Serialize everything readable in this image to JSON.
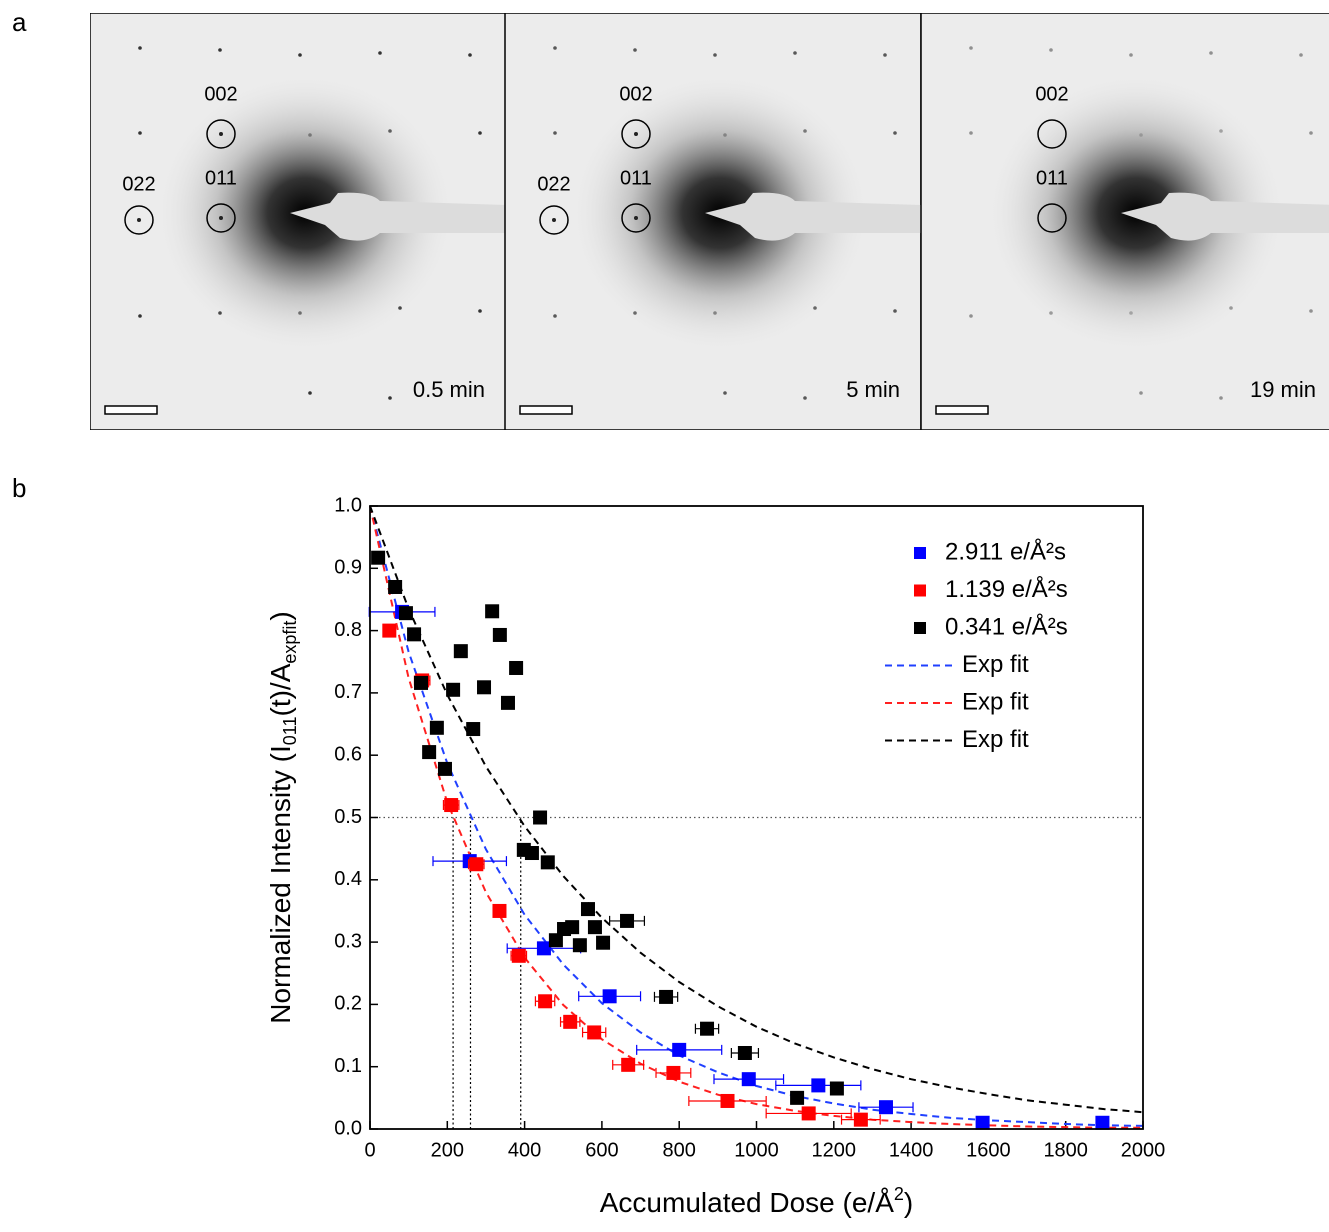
{
  "figure": {
    "panel_a_label": "a",
    "panel_b_label": "b",
    "frames": [
      {
        "time": "0.5 min",
        "spots": [
          "002",
          "011",
          "022"
        ]
      },
      {
        "time": "5 min",
        "spots": [
          "002",
          "011",
          "022"
        ]
      },
      {
        "time": "19 min",
        "spots": [
          "002",
          "011"
        ]
      }
    ]
  },
  "chart_data": {
    "type": "scatter",
    "xlabel": [
      "Accumulated Dose (e/Å",
      "2",
      ")"
    ],
    "ylabel": [
      "Normalized Intensity (I",
      "011",
      "(t)/A",
      "expfit",
      ")"
    ],
    "xlim": [
      0,
      2000
    ],
    "ylim": [
      0,
      1
    ],
    "xticks": [
      0,
      200,
      400,
      600,
      800,
      1000,
      1200,
      1400,
      1600,
      1800,
      2000
    ],
    "yticks": [
      {
        "value": 0,
        "label": "0.0"
      },
      0.1,
      0.2,
      0.3,
      0.4,
      0.5,
      0.6,
      0.7,
      0.8,
      0.9,
      {
        "value": 1,
        "label": "1.0"
      }
    ],
    "ref_y": 0.5,
    "ref_x": [
      215,
      260,
      390
    ],
    "legend": "upper right",
    "series": [
      {
        "name": "2.911 e/Å²s",
        "color": "#0000ff",
        "x": [
          83,
          258,
          450,
          620,
          800,
          980,
          1160,
          1335,
          1585,
          1895
        ],
        "values": [
          0.83,
          0.43,
          0.29,
          0.213,
          0.127,
          0.08,
          0.07,
          0.035,
          0.01,
          0.01
        ],
        "xerr": [
          85,
          95,
          95,
          80,
          110,
          90,
          110,
          70,
          0,
          0
        ]
      },
      {
        "name": "1.139 e/Å²s",
        "color": "#ff0000",
        "x": [
          50,
          135,
          210,
          275,
          335,
          385,
          453,
          518,
          580,
          668,
          785,
          925,
          1135,
          1270
        ],
        "values": [
          0.8,
          0.72,
          0.52,
          0.425,
          0.35,
          0.278,
          0.205,
          0.172,
          0.155,
          0.103,
          0.09,
          0.045,
          0.025,
          0.015
        ],
        "xerr": [
          0,
          20,
          20,
          20,
          15,
          20,
          25,
          25,
          30,
          40,
          45,
          100,
          110,
          50
        ]
      },
      {
        "name": "0.341 e/Å²s",
        "color": "#000000",
        "x": [
          21,
          65,
          93,
          114,
          132,
          153,
          173,
          194,
          215,
          235,
          267,
          295,
          316,
          336,
          357,
          378,
          398,
          419,
          440,
          460,
          481,
          502,
          523,
          543,
          564,
          582,
          603,
          665,
          766,
          872,
          970,
          1105,
          1208
        ],
        "values": [
          0.917,
          0.87,
          0.828,
          0.794,
          0.716,
          0.605,
          0.644,
          0.578,
          0.705,
          0.767,
          0.642,
          0.709,
          0.831,
          0.793,
          0.684,
          0.74,
          0.448,
          0.443,
          0.5,
          0.428,
          0.303,
          0.321,
          0.324,
          0.295,
          0.353,
          0.324,
          0.299,
          0.334,
          0.212,
          0.161,
          0.122,
          0.05,
          0.065
        ],
        "xerr": [
          0,
          0,
          0,
          0,
          0,
          0,
          0,
          0,
          0,
          0,
          0,
          0,
          0,
          0,
          0,
          0,
          0,
          0,
          0,
          0,
          0,
          0,
          0,
          0,
          0,
          0,
          0,
          45,
          30,
          30,
          35,
          0,
          0
        ]
      },
      {
        "name": "Exp fit",
        "color": "#2040ff",
        "kind": "fit",
        "x": [
          0,
          100,
          200,
          300,
          400,
          500,
          600,
          700,
          800,
          900,
          1000,
          1100,
          1200,
          1300,
          1400,
          1500,
          1600,
          1700,
          1800,
          1900,
          2000
        ],
        "values": [
          1,
          0.766,
          0.587,
          0.449,
          0.344,
          0.264,
          0.202,
          0.155,
          0.118,
          0.091,
          0.069,
          0.053,
          0.041,
          0.031,
          0.024,
          0.018,
          0.014,
          0.011,
          0.008,
          0.006,
          0.005
        ]
      },
      {
        "name": "Exp fit",
        "color": "#ff2020",
        "kind": "fit",
        "x": [
          0,
          100,
          200,
          300,
          400,
          500,
          600,
          700,
          800,
          900,
          1000,
          1100,
          1200,
          1300,
          1400,
          1500,
          1600,
          1700,
          1800,
          1900,
          2000
        ],
        "values": [
          1,
          0.724,
          0.524,
          0.38,
          0.275,
          0.199,
          0.144,
          0.105,
          0.076,
          0.055,
          0.04,
          0.029,
          0.021,
          0.015,
          0.011,
          0.008,
          0.006,
          0.004,
          0.003,
          0.002,
          0.002
        ]
      },
      {
        "name": "Exp fit",
        "color": "#000000",
        "kind": "fit",
        "x": [
          0,
          100,
          200,
          300,
          400,
          500,
          600,
          700,
          800,
          900,
          1000,
          1100,
          1200,
          1300,
          1400,
          1500,
          1600,
          1700,
          1800,
          1900,
          2000
        ],
        "values": [
          1,
          0.835,
          0.697,
          0.582,
          0.486,
          0.406,
          0.339,
          0.283,
          0.236,
          0.197,
          0.164,
          0.137,
          0.115,
          0.096,
          0.08,
          0.067,
          0.056,
          0.046,
          0.039,
          0.032,
          0.027
        ]
      }
    ]
  }
}
